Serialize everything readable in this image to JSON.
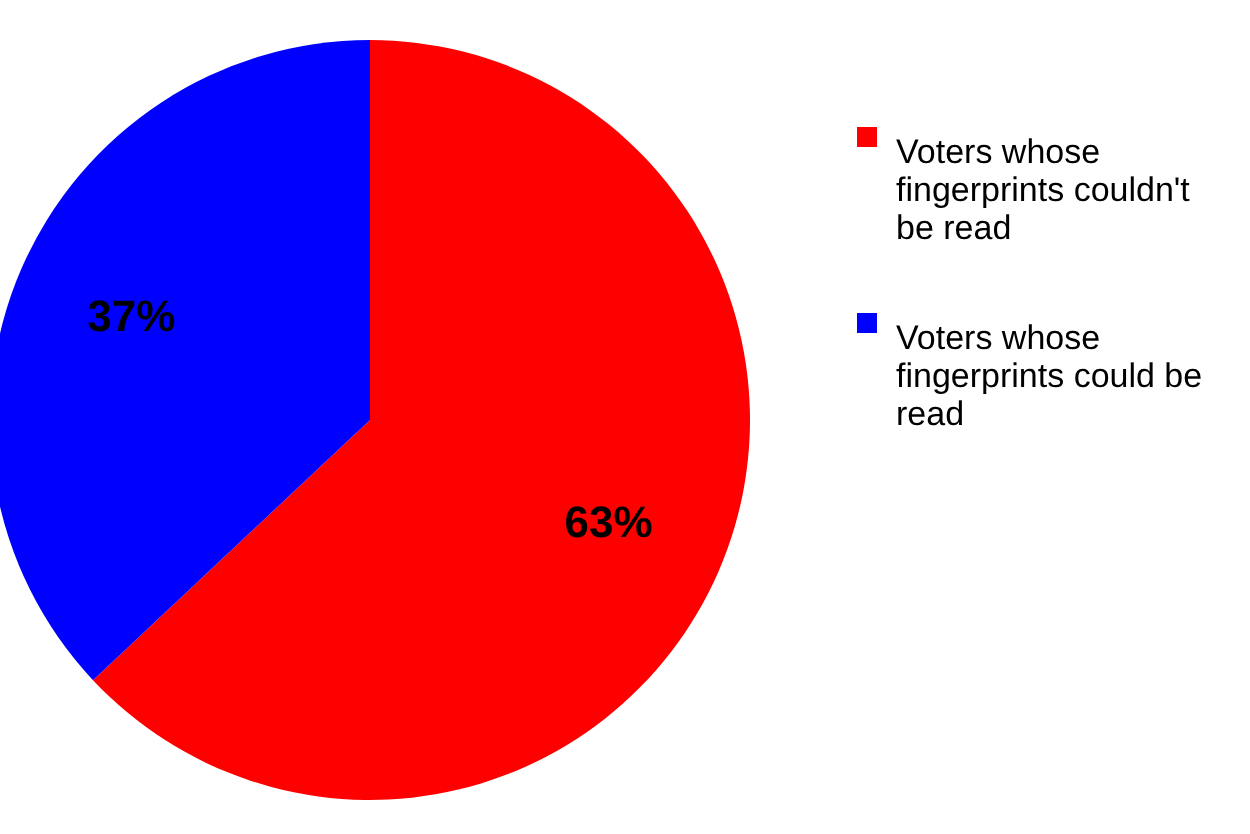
{
  "chart_data": {
    "type": "pie",
    "categories": [
      "Voters whose fingerprints couldn't be read",
      "Voters whose fingerprints could be read"
    ],
    "values": [
      63,
      37
    ],
    "colors": [
      "#ff0000",
      "#0000ff"
    ],
    "value_labels": [
      "63%",
      "37%"
    ],
    "legend": "right"
  }
}
